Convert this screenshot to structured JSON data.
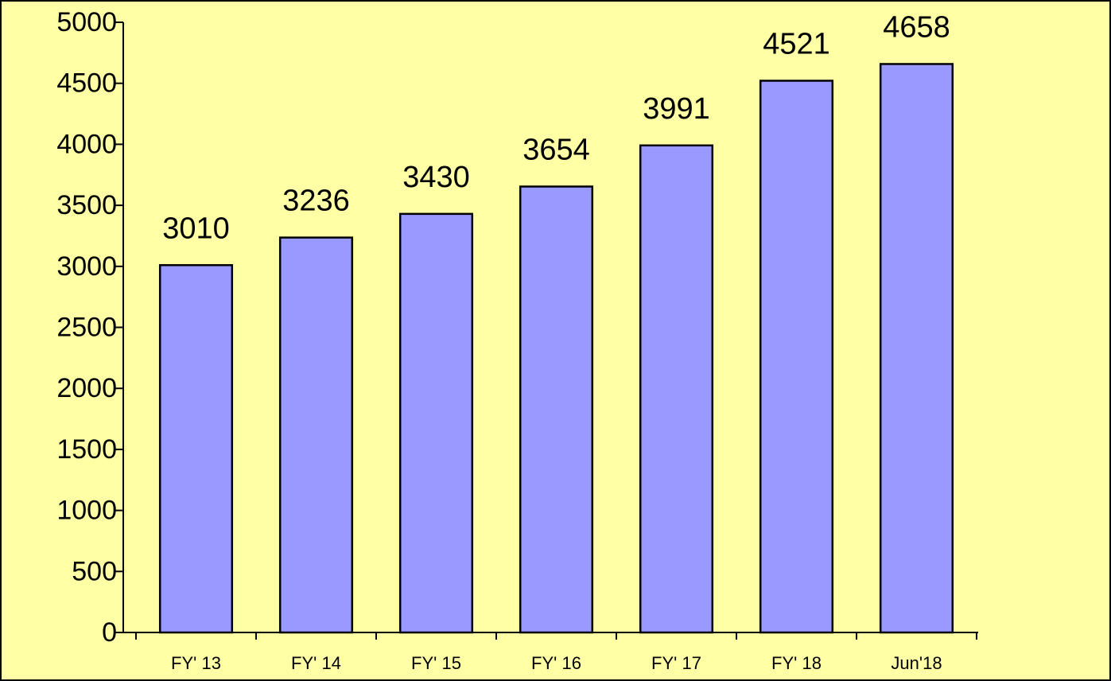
{
  "chart_data": {
    "type": "bar",
    "categories": [
      "FY' 13",
      "FY' 14",
      "FY' 15",
      "FY' 16",
      "FY' 17",
      "FY' 18",
      "Jun'18"
    ],
    "values": [
      3010,
      3236,
      3430,
      3654,
      3991,
      4521,
      4658
    ],
    "color": "#9999ff",
    "ylim": [
      0,
      5000
    ],
    "yticks": [
      0,
      500,
      1000,
      1500,
      2000,
      2500,
      3000,
      3500,
      4000,
      4500,
      5000
    ],
    "grid": false
  }
}
